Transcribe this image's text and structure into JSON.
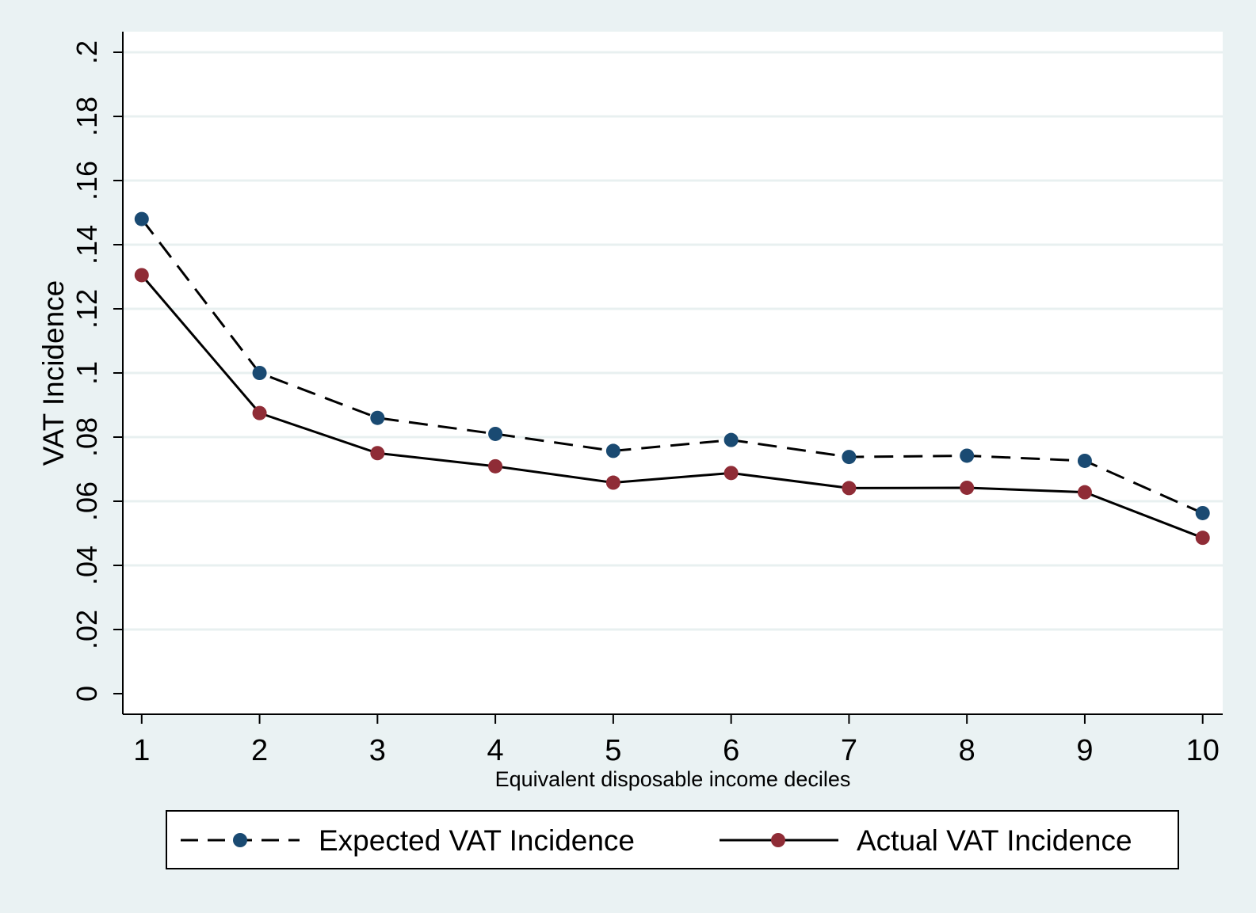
{
  "chart_data": {
    "type": "line",
    "title": "",
    "xlabel": "Equivalent disposable income deciles",
    "ylabel": "VAT Incidence",
    "x": [
      1,
      2,
      3,
      4,
      5,
      6,
      7,
      8,
      9,
      10
    ],
    "x_tick_labels": [
      "1",
      "2",
      "3",
      "4",
      "5",
      "6",
      "7",
      "8",
      "9",
      "10"
    ],
    "xlim": [
      0.84,
      10.17
    ],
    "ylim": [
      0,
      0.2
    ],
    "y_ticks": [
      0,
      0.02,
      0.04,
      0.06,
      0.08,
      0.1,
      0.12,
      0.14,
      0.16,
      0.18,
      0.2
    ],
    "y_tick_labels": [
      "0",
      ".02",
      ".04",
      ".06",
      ".08",
      ".1",
      ".12",
      ".14",
      ".16",
      ".18",
      ".2"
    ],
    "grid": true,
    "legend_position": "bottom",
    "series": [
      {
        "name": "Expected VAT Incidence",
        "line_style": "dashed",
        "color": "#1a4a72",
        "values": [
          0.148,
          0.1,
          0.086,
          0.081,
          0.0757,
          0.0791,
          0.0738,
          0.0742,
          0.0726,
          0.0563
        ]
      },
      {
        "name": "Actual VAT Incidence",
        "line_style": "solid",
        "color": "#8f2c36",
        "values": [
          0.1305,
          0.0875,
          0.075,
          0.0709,
          0.0658,
          0.0688,
          0.0641,
          0.0642,
          0.0628,
          0.0486
        ]
      }
    ]
  },
  "colors": {
    "outer_background": "#eaf2f3",
    "plot_background": "#ffffff",
    "gridline": "#e8f0f0"
  }
}
